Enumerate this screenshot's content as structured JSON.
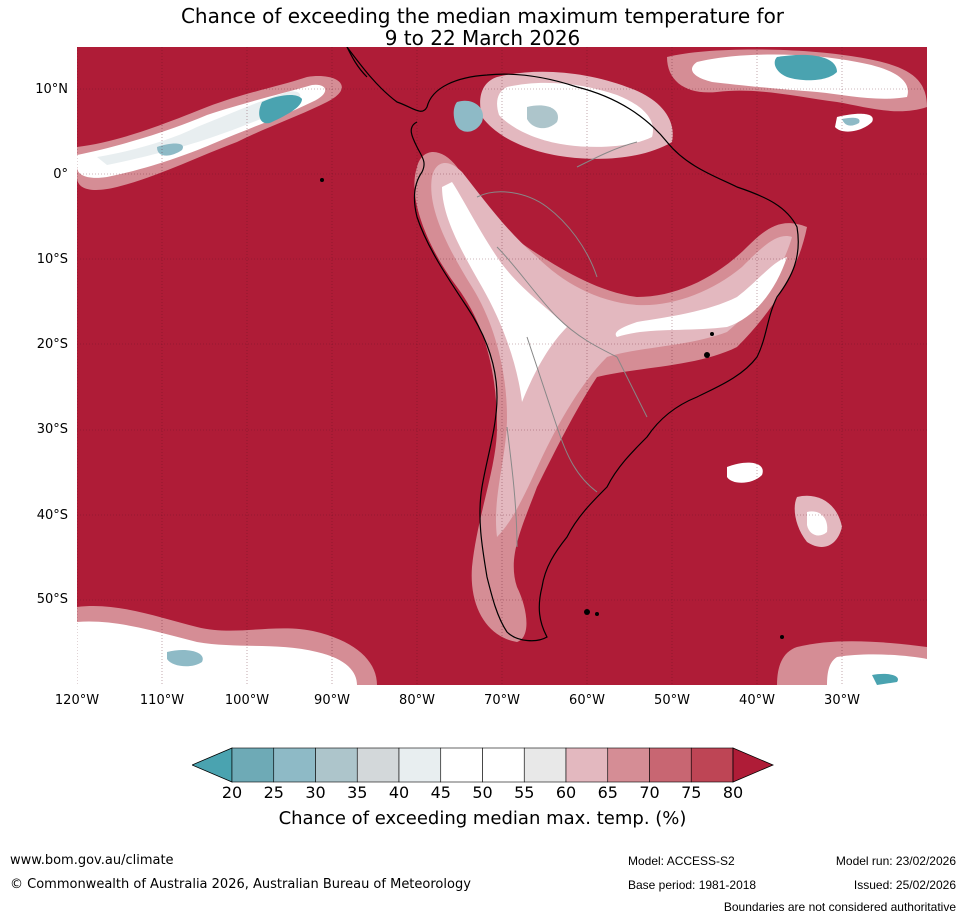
{
  "title": {
    "line1": "Chance of exceeding the median maximum temperature for",
    "line2": "9 to 22 March 2026"
  },
  "map": {
    "lat_labels": [
      "10°N",
      "0°",
      "10°S",
      "20°S",
      "30°S",
      "40°S",
      "50°S"
    ],
    "lon_labels": [
      "120°W",
      "110°W",
      "100°W",
      "90°W",
      "80°W",
      "70°W",
      "60°W",
      "50°W",
      "40°W",
      "30°W"
    ],
    "background_color": "#af1c37"
  },
  "colorbar": {
    "title": "Chance of exceeding median max. temp. (%)",
    "ticks": [
      "20",
      "25",
      "30",
      "35",
      "40",
      "45",
      "50",
      "55",
      "60",
      "65",
      "70",
      "75",
      "80"
    ],
    "colors": [
      "#4aa3b0",
      "#6eaab6",
      "#8ebac6",
      "#adc5cb",
      "#d3d8da",
      "#e8eef0",
      "#ffffff",
      "#ffffff",
      "#e8e8e8",
      "#e3b8bf",
      "#d58d95",
      "#c86672",
      "#be4555",
      "#af1c37"
    ]
  },
  "footer": {
    "website": "www.bom.gov.au/climate",
    "copyright": "© Commonwealth of Australia 2026, Australian Bureau of Meteorology",
    "model": "Model: ACCESS-S2",
    "base_period": "Base period: 1981-2018",
    "model_run": "Model run: 23/02/2026",
    "issued": "Issued: 25/02/2026",
    "disclaimer": "Boundaries are not considered authoritative"
  }
}
